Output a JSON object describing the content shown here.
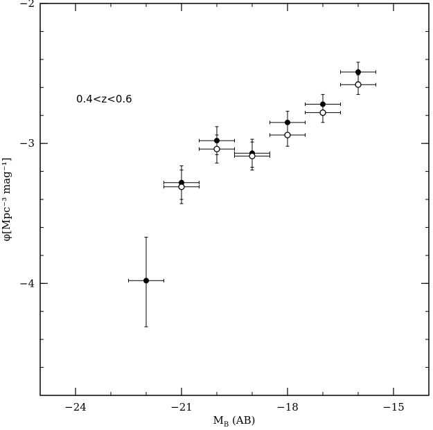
{
  "chart_data": {
    "type": "scatter",
    "annotation": "0.4<z<0.6",
    "xlabel": {
      "main": "M",
      "sub": "B",
      "rest": " (AB)"
    },
    "ylabel": "φ[Mpc⁻³ mag⁻¹]",
    "xlim": [
      -25,
      -14
    ],
    "ylim": [
      -4.8,
      -2.0
    ],
    "xticks": [
      -24,
      -21,
      -18,
      -15
    ],
    "xtick_labels": [
      "−24",
      "−21",
      "−18",
      "−15"
    ],
    "xminor_step": 1,
    "yticks": [
      -4,
      -3,
      -2
    ],
    "ytick_labels": [
      "−4",
      "−3",
      "−2"
    ],
    "yminor_step": 0.2,
    "grid": false,
    "colors": {
      "axis": "#000000",
      "marker": "#000000",
      "background": "#ffffff"
    },
    "series": [
      {
        "marker": "filled-circle",
        "points": [
          {
            "x": -22.0,
            "y": -3.98,
            "xerr": 0.5,
            "yerr_low": 0.33,
            "yerr_high": 0.31
          },
          {
            "x": -21.0,
            "y": -3.28,
            "xerr": 0.5,
            "yerr_low": 0.12,
            "yerr_high": 0.12
          },
          {
            "x": -20.0,
            "y": -2.98,
            "xerr": 0.5,
            "yerr_low": 0.1,
            "yerr_high": 0.1
          },
          {
            "x": -19.0,
            "y": -3.07,
            "xerr": 0.5,
            "yerr_low": 0.1,
            "yerr_high": 0.1
          },
          {
            "x": -18.0,
            "y": -2.85,
            "xerr": 0.5,
            "yerr_low": 0.08,
            "yerr_high": 0.08
          },
          {
            "x": -17.0,
            "y": -2.72,
            "xerr": 0.5,
            "yerr_low": 0.07,
            "yerr_high": 0.07
          },
          {
            "x": -16.0,
            "y": -2.49,
            "xerr": 0.5,
            "yerr_low": 0.07,
            "yerr_high": 0.07
          }
        ]
      },
      {
        "marker": "open-circle",
        "points": [
          {
            "x": -21.0,
            "y": -3.31,
            "xerr": 0.5,
            "yerr_low": 0.12,
            "yerr_high": 0.12
          },
          {
            "x": -20.0,
            "y": -3.04,
            "xerr": 0.5,
            "yerr_low": 0.1,
            "yerr_high": 0.1
          },
          {
            "x": -19.0,
            "y": -3.09,
            "xerr": 0.5,
            "yerr_low": 0.1,
            "yerr_high": 0.1
          },
          {
            "x": -18.0,
            "y": -2.94,
            "xerr": 0.5,
            "yerr_low": 0.08,
            "yerr_high": 0.08
          },
          {
            "x": -17.0,
            "y": -2.78,
            "xerr": 0.5,
            "yerr_low": 0.07,
            "yerr_high": 0.07
          },
          {
            "x": -16.0,
            "y": -2.58,
            "xerr": 0.5,
            "yerr_low": 0.07,
            "yerr_high": 0.07
          }
        ]
      }
    ]
  }
}
